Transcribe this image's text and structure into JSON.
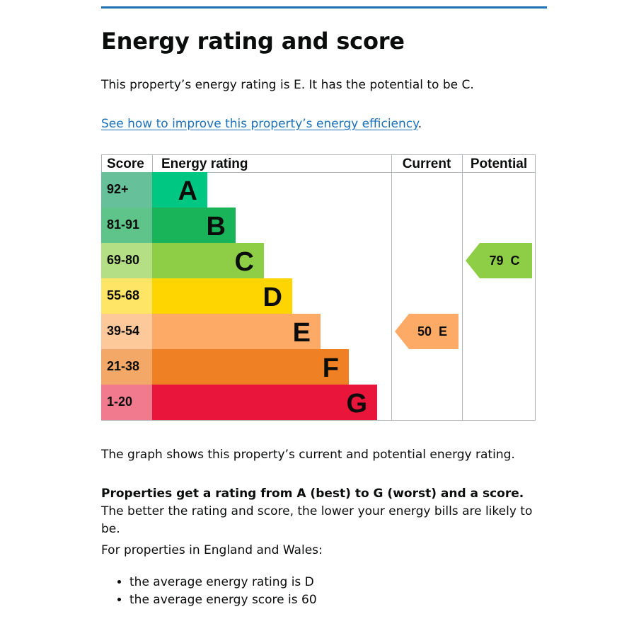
{
  "page": {
    "title": "Energy rating and score",
    "intro": "This property’s energy rating is E. It has the potential to be C.",
    "improve_link": "See how to improve this property’s energy efficiency",
    "improve_suffix": ".",
    "graph_caption": "The graph shows this property’s current and potential energy rating.",
    "rating_bold": "Properties get a rating from A (best) to G (worst) and a score.",
    "rating_rest": " The better the rating and score, the lower your energy bills are likely to be.",
    "region_intro": "For properties in England and Wales:",
    "bullets": [
      "the average energy rating is D",
      "the average energy score is 60"
    ]
  },
  "chart_data": {
    "type": "bar",
    "headers": {
      "score": "Score",
      "rating": "Energy rating",
      "current": "Current",
      "potential": "Potential"
    },
    "bands": [
      {
        "letter": "A",
        "range": "92+",
        "color": "#008054",
        "score_color": "#66c099",
        "bar_color": "#00c781"
      },
      {
        "letter": "B",
        "range": "81-91",
        "color": "#19b459",
        "score_color": "#5ec48a",
        "bar_color": "#19b459"
      },
      {
        "letter": "C",
        "range": "69-80",
        "color": "#8dce46",
        "score_color": "#b4df85",
        "bar_color": "#8dce46"
      },
      {
        "letter": "D",
        "range": "55-68",
        "color": "#ffd500",
        "score_color": "#ffe566",
        "bar_color": "#ffd500"
      },
      {
        "letter": "E",
        "range": "39-54",
        "color": "#fcaa65",
        "score_color": "#fdc89a",
        "bar_color": "#fcaa65"
      },
      {
        "letter": "F",
        "range": "21-38",
        "color": "#ef8023",
        "score_color": "#f4a867",
        "bar_color": "#ef8023"
      },
      {
        "letter": "G",
        "range": "1-20",
        "color": "#e9153b",
        "score_color": "#f27a8f",
        "bar_color": "#e9153b"
      }
    ],
    "current": {
      "score": 50,
      "letter": "E",
      "label": "50  E",
      "color": "#fcaa65"
    },
    "potential": {
      "score": 79,
      "letter": "C",
      "label": "79  C",
      "color": "#8dce46"
    }
  }
}
